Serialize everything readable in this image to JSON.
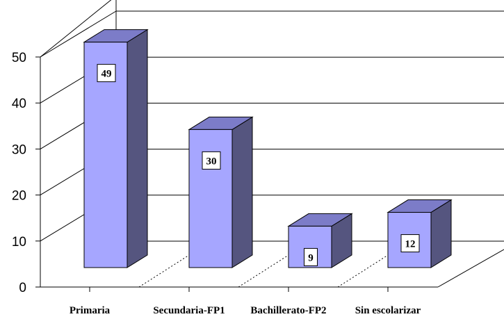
{
  "chart_data": {
    "type": "bar",
    "title": "",
    "xlabel": "",
    "ylabel": "",
    "categories": [
      "Primaria",
      "Secundaria-FP1",
      "Bachillerato-FP2",
      "Sin escolarizar"
    ],
    "values": [
      49,
      30,
      9,
      12
    ],
    "data_labels": [
      "49",
      "30",
      "9",
      "12"
    ],
    "ylim": [
      0,
      50
    ],
    "yticks": [
      "0",
      "10",
      "20",
      "30",
      "40",
      "50"
    ],
    "grid": true,
    "legend": "none",
    "style": "3d-column",
    "colors": {
      "bar_front": "#a6a6ff",
      "bar_top": "#7c7cc8",
      "bar_side": "#55557f",
      "axis": "#000000",
      "grid": "#000000"
    }
  }
}
